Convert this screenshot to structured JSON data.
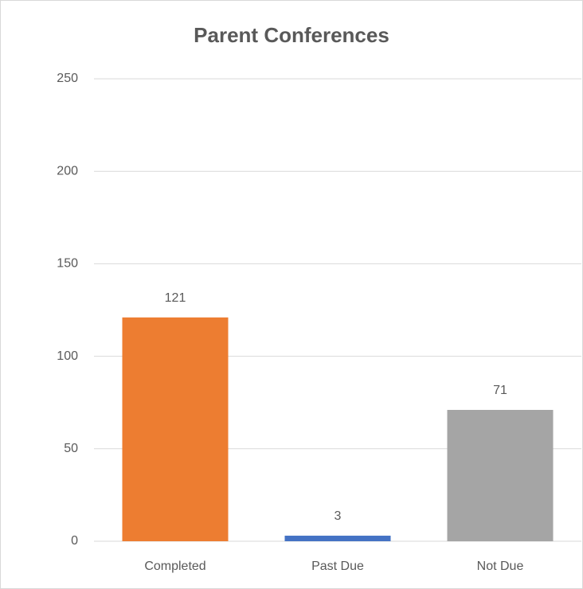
{
  "chart_data": {
    "type": "bar",
    "title": "Parent Conferences",
    "categories": [
      "Completed",
      "Past Due",
      "Not Due"
    ],
    "values": [
      121,
      3,
      71
    ],
    "colors": [
      "#ed7d31",
      "#4472c4",
      "#a5a5a5"
    ],
    "ylim": [
      0,
      250
    ],
    "yticks": [
      0,
      50,
      100,
      150,
      200,
      250
    ],
    "grid": true,
    "data_labels": true
  }
}
